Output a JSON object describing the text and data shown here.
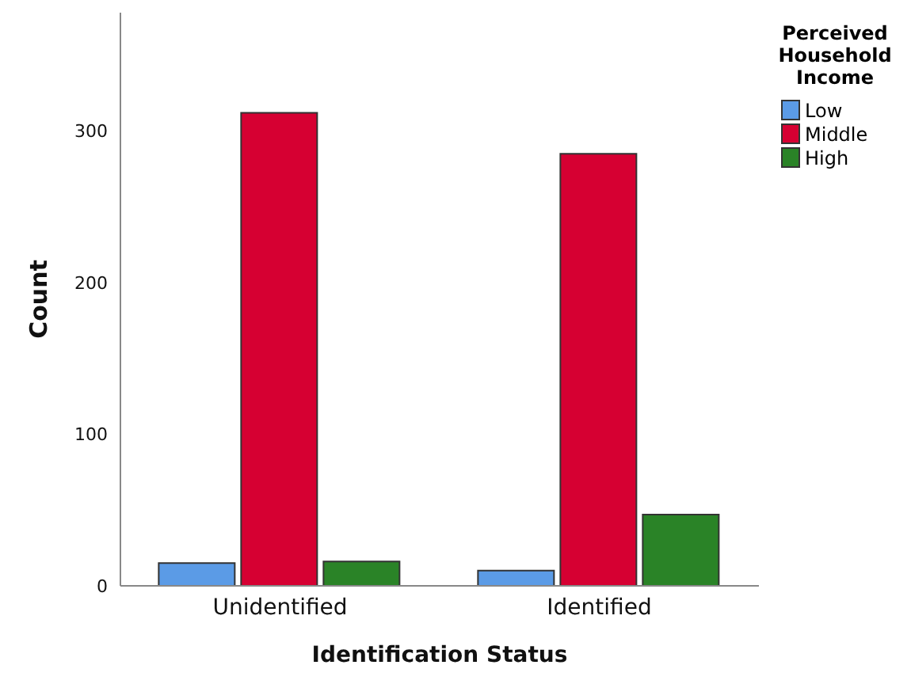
{
  "chart_data": {
    "type": "bar",
    "xlabel": "Identification Status",
    "ylabel": "Count",
    "legend_title": "Perceived Household Income",
    "categories": [
      "Unidentified",
      "Identified"
    ],
    "series": [
      {
        "name": "Low",
        "color": "#5b9be6",
        "values": [
          15,
          10
        ]
      },
      {
        "name": "Middle",
        "color": "#d60032",
        "values": [
          312,
          285
        ]
      },
      {
        "name": "High",
        "color": "#2a8327",
        "values": [
          16,
          47
        ]
      }
    ],
    "ylim": [
      0,
      378
    ],
    "yticks": [
      0,
      100,
      200,
      300
    ],
    "grid": false,
    "legend": "top right"
  }
}
